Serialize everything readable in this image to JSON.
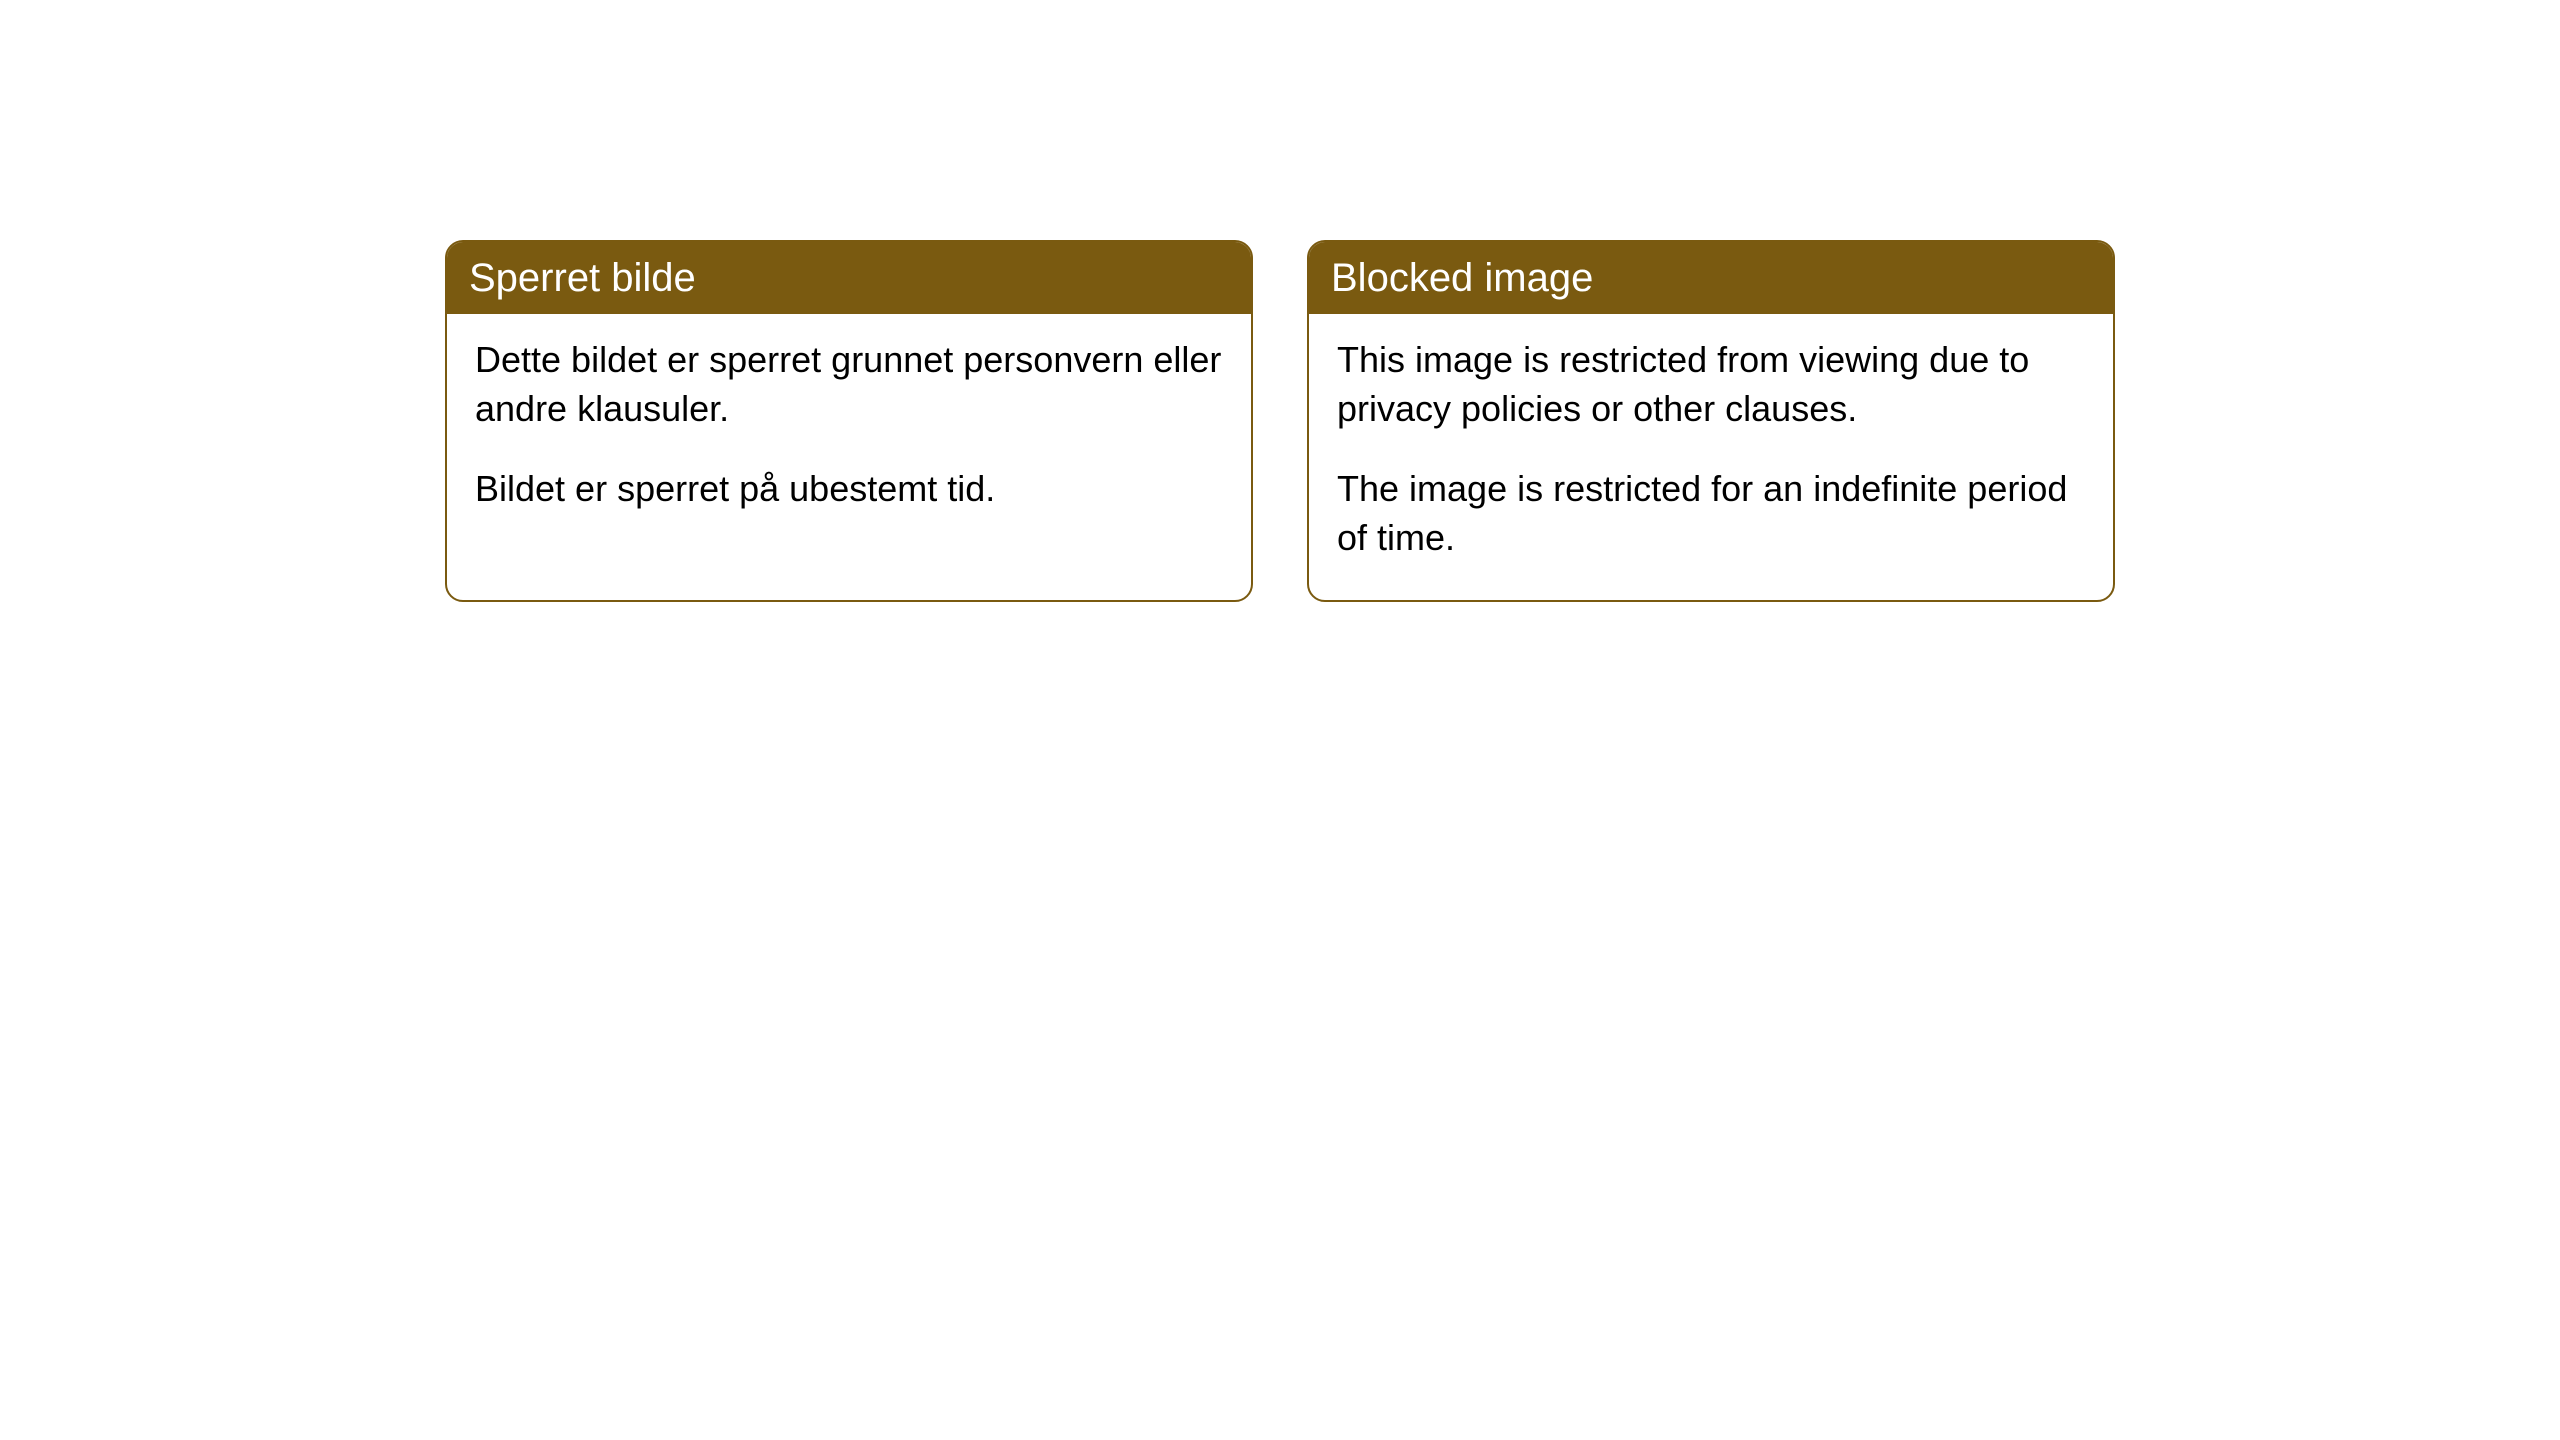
{
  "layout": {
    "background_color": "#ffffff",
    "card_border_color": "#7a5a10",
    "card_header_bg": "#7a5a10",
    "card_header_text_color": "#ffffff",
    "card_body_text_color": "#000000",
    "card_border_radius": 18,
    "header_fontsize": 40,
    "body_fontsize": 36
  },
  "cards": [
    {
      "header": "Sperret bilde",
      "para1": "Dette bildet er sperret grunnet personvern eller andre klausuler.",
      "para2": "Bildet er sperret på ubestemt tid."
    },
    {
      "header": "Blocked image",
      "para1": "This image is restricted from viewing due to privacy policies or other clauses.",
      "para2": "The image is restricted for an indefinite period of time."
    }
  ]
}
